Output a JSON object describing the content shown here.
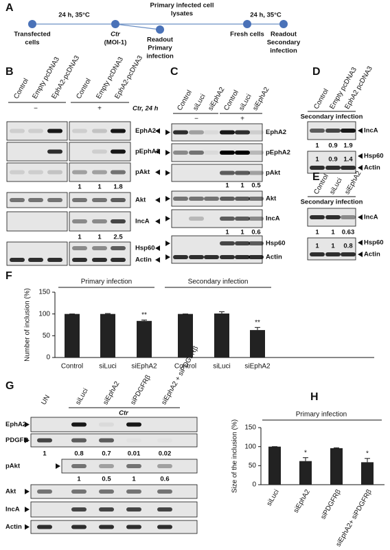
{
  "panel_a": {
    "letter": "A",
    "top_left_label": "24 h, 35°C",
    "top_middle_label": [
      "Primary infected cell",
      "lysates"
    ],
    "top_right_label": "24 h, 35°C",
    "steps": [
      [
        "Transfected",
        "cells"
      ],
      [
        "Ctr",
        "(MOI-1)"
      ],
      [
        "Readout",
        "Primary",
        "infection"
      ],
      [
        "Fresh cells"
      ],
      [
        "Readout",
        "Secondary",
        "infection"
      ]
    ]
  },
  "panel_b": {
    "letter": "B",
    "columns": [
      "Control",
      "Empty pcDNA3",
      "EphA2-pcDNA3",
      "Control",
      "Empty pcDNA3",
      "EphA2-pcDNA3"
    ],
    "conditions": [
      "−",
      "+"
    ],
    "treatment": "Ctr, 24 h",
    "rows": [
      "EphA2",
      "pEphA2",
      "pAkt",
      "Akt",
      "IncA",
      "Hsp60",
      "Actin"
    ],
    "quantifications": [
      [
        1,
        1,
        1.8
      ],
      [
        1,
        1,
        2.5
      ]
    ]
  },
  "panel_c": {
    "letter": "C",
    "columns": [
      "Control",
      "siLuci",
      "siEphA2",
      "Control",
      "siLuci",
      "siEphA2"
    ],
    "conditions": [
      "−",
      "+"
    ],
    "rows": [
      "EphA2",
      "pEphA2",
      "pAkt",
      "Akt",
      "IncA",
      "Hsp60",
      "Actin"
    ],
    "quantifications": [
      [
        1,
        1,
        0.5
      ],
      [
        1,
        1,
        0.6
      ]
    ]
  },
  "panel_d": {
    "letter": "D",
    "columns": [
      "Control",
      "Empty pcDNA3",
      "EphA2 pcDNA3"
    ],
    "header": "Secondary infection",
    "rows": [
      "IncA",
      "Hsp60",
      "Actin"
    ],
    "quantifications": [
      [
        1,
        0.9,
        1.9
      ],
      [
        1,
        0.9,
        1.4
      ]
    ]
  },
  "panel_e": {
    "letter": "E",
    "columns": [
      "Control",
      "siLuci",
      "siEphA2"
    ],
    "header": "Secondary infection",
    "rows": [
      "IncA",
      "Hsp60",
      "Actin"
    ],
    "quantifications": [
      [
        1,
        1,
        0.63
      ],
      [
        1,
        1,
        0.8
      ]
    ]
  },
  "panel_g": {
    "letter": "G",
    "columns": [
      "UN",
      "siLuci",
      "siEphA2",
      "siPDGFRβ",
      "siEphA2 + siPDGFRβ"
    ],
    "treatment": "Ctr",
    "rows": [
      "EphA2",
      "PDGFR",
      "pAkt",
      "Akt",
      "IncA",
      "Actin"
    ],
    "quantifications": [
      [
        1,
        0.8,
        0.7,
        0.01,
        0.02
      ],
      [
        1,
        0.5,
        1,
        0.6
      ]
    ]
  },
  "chart_data": [
    {
      "type": "bar",
      "letter": "F",
      "y_label": "Number of inclusion (%)",
      "groups": [
        "Primary infection",
        "Secondary infection"
      ],
      "categories": [
        "Control",
        "siLuci",
        "siEphA2",
        "Control",
        "siLuci",
        "siEphA2"
      ],
      "values": [
        100,
        100,
        84,
        100,
        101,
        63
      ],
      "errors": [
        0,
        1,
        2,
        0,
        4,
        6
      ],
      "annotations": [
        null,
        null,
        "**",
        null,
        null,
        "**"
      ],
      "color": "#222222",
      "ylim": [
        0,
        150
      ],
      "yticks": [
        0,
        50,
        100,
        150
      ]
    },
    {
      "type": "bar",
      "letter": "H",
      "header": "Primary infection",
      "y_label": "Size of the inclusion (%)",
      "categories": [
        "siLuci",
        "siEphA2",
        "siPDGFRβ",
        "siEphA2+ siPDGFRβ"
      ],
      "values": [
        100,
        62,
        96,
        59
      ],
      "errors": [
        0,
        9,
        1,
        10
      ],
      "annotations": [
        null,
        "*",
        null,
        "*"
      ],
      "color": "#222222",
      "ylim": [
        0,
        150
      ],
      "yticks": [
        0,
        50,
        100,
        150
      ]
    }
  ]
}
